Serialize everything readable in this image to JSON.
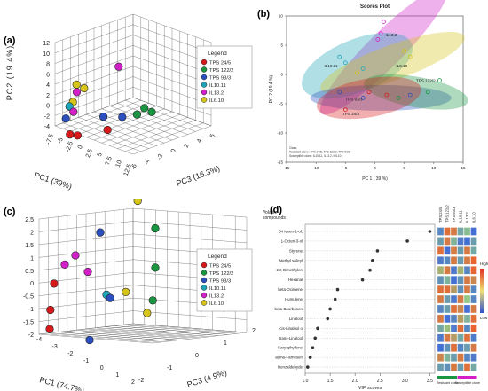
{
  "colors": {
    "tps245": "#d7191c",
    "tps1222": "#1a9641",
    "tps933": "#2c4fbf",
    "il1011": "#1fa3b8",
    "il132": "#d21fc8",
    "il610": "#d6c41a",
    "grid": "#555555"
  },
  "panels": {
    "a": "(a)",
    "b": "(b)",
    "c": "(c)",
    "d": "(d)"
  },
  "legend": {
    "title": "Legend",
    "items": [
      {
        "label": "TPS 24/5",
        "color": "#d7191c"
      },
      {
        "label": "TPS 122/2",
        "color": "#1a9641"
      },
      {
        "label": "TPS 93/3",
        "color": "#2c4fbf"
      },
      {
        "label": "IL10.11",
        "color": "#1fa3b8"
      },
      {
        "label": "IL13.2",
        "color": "#d21fc8"
      },
      {
        "label": "IL6.10",
        "color": "#d6c41a"
      }
    ]
  },
  "chart_data": [
    {
      "type": "scatter",
      "panel": "a",
      "title": "",
      "xlabel": "PC1 (39%)",
      "ylabel": "PC2 (19.4%)",
      "zlabel": "PC3 (16.3%)",
      "ylim": [
        -4,
        12
      ],
      "yticks": [
        "-4",
        "-2",
        "0",
        "2",
        "4",
        "6",
        "8",
        "10",
        "12"
      ],
      "xticks": [
        "-7.5",
        "-5",
        "-2.5",
        "0",
        "2.5",
        "5",
        "7.5",
        "10",
        "12.5"
      ],
      "zticks": [
        "-6",
        "-4",
        "-2",
        "0",
        "2",
        "4",
        "6"
      ],
      "points": [
        {
          "series": "IL13.2",
          "x": 6,
          "y": 9,
          "z": 0
        },
        {
          "series": "IL6.10",
          "x": -6,
          "y": 4,
          "z": -1
        },
        {
          "series": "IL6.10",
          "x": -4,
          "y": 3.5,
          "z": -1
        },
        {
          "series": "IL13.2",
          "x": -5,
          "y": 3,
          "z": 0
        },
        {
          "series": "IL6.10",
          "x": -6,
          "y": 1,
          "z": 0
        },
        {
          "series": "IL10.11",
          "x": -6,
          "y": 0.5,
          "z": 1
        },
        {
          "series": "IL13.2",
          "x": -4,
          "y": 0,
          "z": 2
        },
        {
          "series": "TPS 93/3",
          "x": -6,
          "y": -1.5,
          "z": 2
        },
        {
          "series": "TPS 93/3",
          "x": 2,
          "y": -1,
          "z": 0
        },
        {
          "series": "TPS 93/3",
          "x": 6,
          "y": -1,
          "z": -1
        },
        {
          "series": "TPS 122/2",
          "x": 9,
          "y": 0,
          "z": -4
        },
        {
          "series": "TPS 122/2",
          "x": 8,
          "y": -1,
          "z": -3
        },
        {
          "series": "TPS 122/2",
          "x": 10,
          "y": -1,
          "z": -5
        },
        {
          "series": "TPS 24/5",
          "x": -4,
          "y": -4,
          "z": 3
        },
        {
          "series": "TPS 24/5",
          "x": -2,
          "y": -4,
          "z": 3
        },
        {
          "series": "TPS 24/5",
          "x": 4,
          "y": -3,
          "z": 1
        }
      ]
    },
    {
      "type": "scatter",
      "panel": "b",
      "title": "Scores Plot",
      "xlabel": "PC 1 ( 39 %)",
      "ylabel": "PC 2 (19.4 %)",
      "xlim": [
        -15,
        15
      ],
      "ylim": [
        -15,
        10
      ],
      "xticks": [
        "-15",
        "-10",
        "-5",
        "0",
        "5",
        "10",
        "15"
      ],
      "yticks": [
        "-15",
        "-10",
        "-5",
        "0",
        "5",
        "10"
      ],
      "group_labels": [
        "IL13.2",
        "IL10.11",
        "IL6.10",
        "TPS 122/2",
        "TPS 93/3",
        "TPS 24/5"
      ],
      "annotation": [
        "Class:",
        "Resistant clone: TPS 24/5, TPS 122/2, TPS 93/3",
        "Susceptible clone: IL10.11, IL13.2, IL6.10"
      ],
      "points": [
        {
          "series": "IL13.2",
          "x": 1.5,
          "y": 9
        },
        {
          "series": "IL13.2",
          "x": 1.0,
          "y": 7
        },
        {
          "series": "IL13.2",
          "x": 0.5,
          "y": 6
        },
        {
          "series": "IL10.11",
          "x": -6,
          "y": 3
        },
        {
          "series": "IL10.11",
          "x": -5,
          "y": 2
        },
        {
          "series": "IL10.11",
          "x": -2,
          "y": 1
        },
        {
          "series": "IL6.10",
          "x": 5,
          "y": 4
        },
        {
          "series": "IL6.10",
          "x": 6,
          "y": 3
        },
        {
          "series": "IL6.10",
          "x": -3,
          "y": 0.3
        },
        {
          "series": "TPS 122/2",
          "x": 11,
          "y": -1
        },
        {
          "series": "TPS 122/2",
          "x": 9,
          "y": -3
        },
        {
          "series": "TPS 122/2",
          "x": 4,
          "y": -4
        },
        {
          "series": "TPS 93/3",
          "x": -6,
          "y": -3
        },
        {
          "series": "TPS 93/3",
          "x": -2,
          "y": -4
        },
        {
          "series": "TPS 93/3",
          "x": 6,
          "y": -3.5
        },
        {
          "series": "TPS 24/5",
          "x": -5,
          "y": -6
        },
        {
          "series": "TPS 24/5",
          "x": -1,
          "y": -3
        },
        {
          "series": "TPS 24/5",
          "x": 2,
          "y": -3.5
        }
      ]
    },
    {
      "type": "scatter",
      "panel": "c",
      "title": "",
      "xlabel": "PC1 (74.7%)",
      "ylabel": "",
      "zlabel": "PC3 (4.9%)",
      "ylim": [
        -2,
        2.5
      ],
      "yticks": [
        "-2",
        "-1.5",
        "-1",
        "-0.5",
        "0",
        "0.5",
        "1",
        "1.5",
        "2",
        "2.5"
      ],
      "xticks": [
        "-4",
        "-3",
        "-2",
        "-1",
        "0",
        "1",
        "2"
      ],
      "zticks": [
        "-2",
        "-1",
        "0",
        "1",
        "2"
      ],
      "points": [
        {
          "series": "IL6.10",
          "x": 1.8,
          "y": 2.5,
          "z": -1
        },
        {
          "series": "TPS 93/3",
          "x": -0.5,
          "y": 1.7,
          "z": 0
        },
        {
          "series": "IL13.2",
          "x": -2.5,
          "y": 1,
          "z": 0
        },
        {
          "series": "IL13.2",
          "x": -3,
          "y": 0.8,
          "z": 0.5
        },
        {
          "series": "IL13.2",
          "x": -1.5,
          "y": 0.5,
          "z": 0
        },
        {
          "series": "TPS 24/5",
          "x": -3.5,
          "y": 0.3,
          "z": 1
        },
        {
          "series": "TPS 24/5",
          "x": -3.8,
          "y": -0.5,
          "z": 1
        },
        {
          "series": "TPS 24/5",
          "x": -3.5,
          "y": -1,
          "z": 1.5
        },
        {
          "series": "IL10.11",
          "x": 0,
          "y": -0.2,
          "z": 0
        },
        {
          "series": "TPS 93/3",
          "x": 0.3,
          "y": -0.3,
          "z": 0
        },
        {
          "series": "TPS 93/3",
          "x": -1,
          "y": -1.5,
          "z": 0.5
        },
        {
          "series": "IL6.10",
          "x": 1.2,
          "y": -0.2,
          "z": -0.5
        },
        {
          "series": "IL6.10",
          "x": 2.2,
          "y": -1,
          "z": -1.5
        },
        {
          "series": "TPS 122/2",
          "x": 2.5,
          "y": 1.5,
          "z": -2
        },
        {
          "series": "TPS 122/2",
          "x": 2.5,
          "y": 0.3,
          "z": -2
        },
        {
          "series": "TPS 122/2",
          "x": 2.3,
          "y": -0.7,
          "z": -2
        }
      ]
    },
    {
      "type": "scatter",
      "panel": "d",
      "title": "",
      "ylabel": "Volatile compounds",
      "xlabel": "VIP scores",
      "xlim": [
        1.0,
        3.6
      ],
      "xticks": [
        "1.0",
        "1.5",
        "2.0",
        "2.5",
        "3.0",
        "3.5"
      ],
      "categories": [
        "3-Hexen-1-ol,",
        "1-Octen-3-ol",
        "Styrene",
        "Methyl salicyl",
        "2,6-Dimethylen",
        "Hexanal",
        "beta-Ocimene",
        "Humulene",
        "beta-Bourbonen",
        "Linalool",
        "cis-Linalool o",
        "trans-Linalool",
        "Caryophyllene",
        "alpha-Farnesen",
        "Benzaldehyde"
      ],
      "values": [
        3.5,
        3.05,
        2.45,
        2.35,
        2.3,
        2.15,
        1.65,
        1.6,
        1.5,
        1.45,
        1.25,
        1.2,
        1.15,
        1.1,
        1.05
      ],
      "heatmap_columns": [
        "TPS 24/5",
        "TPS 122/2",
        "TPS 93/3",
        "IL10.11",
        "IL13.2",
        "IL6.10"
      ],
      "heatmap_groups": [
        "Resistant clone",
        "Susceptible clone"
      ],
      "color_scale": [
        "High",
        "Low"
      ],
      "heatmap_levels": [
        [
          0.2,
          0.9,
          0.85,
          0.35,
          0.45,
          0.1
        ],
        [
          0.3,
          0.85,
          0.4,
          0.15,
          0.1,
          0.3
        ],
        [
          0.9,
          0.1,
          0.85,
          0.3,
          0.85,
          0.35
        ],
        [
          0.15,
          0.2,
          0.85,
          0.3,
          0.85,
          0.95
        ],
        [
          0.6,
          0.85,
          0.15,
          0.6,
          0.2,
          0.95
        ],
        [
          0.25,
          0.4,
          0.1,
          0.25,
          0.85,
          0.8
        ],
        [
          0.9,
          0.9,
          0.7,
          0.25,
          0.85,
          0.2
        ],
        [
          0.85,
          0.3,
          0.15,
          0.85,
          0.5,
          0.2
        ],
        [
          0.2,
          0.3,
          0.9,
          0.8,
          0.1,
          0.85
        ],
        [
          0.85,
          0.1,
          0.2,
          0.7,
          0.4,
          0.9
        ],
        [
          0.35,
          0.55,
          0.15,
          0.9,
          0.2,
          0.95
        ],
        [
          0.15,
          0.85,
          0.7,
          0.35,
          0.9,
          0.15
        ],
        [
          0.1,
          0.25,
          0.9,
          0.2,
          0.3,
          0.85
        ],
        [
          0.8,
          0.4,
          0.3,
          0.85,
          0.2,
          0.15
        ],
        [
          0.3,
          0.25,
          0.85,
          0.3,
          0.9,
          0.35
        ]
      ]
    }
  ]
}
